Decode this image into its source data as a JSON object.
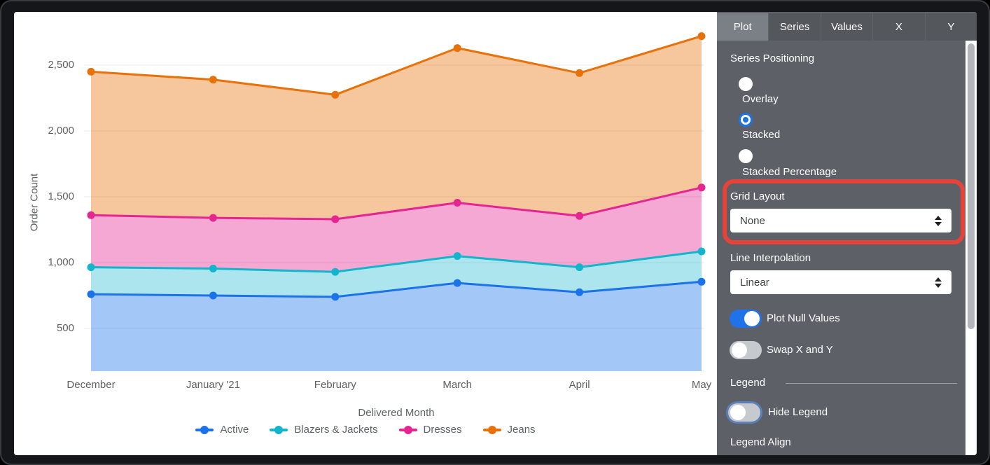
{
  "chart_data": {
    "type": "area",
    "stacked": true,
    "title": "",
    "xlabel": "Delivered Month",
    "ylabel": "Order Count",
    "categories": [
      "December",
      "January '21",
      "February",
      "March",
      "April",
      "May"
    ],
    "series": [
      {
        "name": "Active",
        "color": "#1a73e8",
        "fill": "rgba(26,115,232,0.40)",
        "values": [
          760,
          750,
          740,
          845,
          775,
          855
        ]
      },
      {
        "name": "Blazers & Jackets",
        "color": "#12b5cb",
        "fill": "rgba(18,181,203,0.35)",
        "values": [
          205,
          205,
          190,
          205,
          190,
          230
        ]
      },
      {
        "name": "Dresses",
        "color": "#e52592",
        "fill": "rgba(229,37,146,0.40)",
        "values": [
          395,
          385,
          400,
          405,
          390,
          485
        ]
      },
      {
        "name": "Jeans",
        "color": "#e8710a",
        "fill": "rgba(232,113,10,0.40)",
        "values": [
          1090,
          1050,
          945,
          1175,
          1085,
          1150
        ]
      }
    ],
    "stacked_totals": {
      "Active": [
        760,
        750,
        740,
        845,
        775,
        855
      ],
      "Blazers & Jackets": [
        965,
        955,
        930,
        1050,
        965,
        1085
      ],
      "Dresses": [
        1360,
        1340,
        1330,
        1455,
        1355,
        1570
      ],
      "Jeans": [
        2450,
        2390,
        2275,
        2630,
        2440,
        2720
      ]
    },
    "y_ticks": [
      500,
      1000,
      1500,
      2000,
      2500
    ],
    "y_tick_labels": [
      "500",
      "1,000",
      "1,500",
      "2,000",
      "2,500"
    ],
    "ylim": [
      165,
      2910
    ],
    "grid": "horizontal",
    "legend_position": "bottom"
  },
  "panel": {
    "tabs": [
      {
        "label": "Plot",
        "active": true
      },
      {
        "label": "Series",
        "active": false
      },
      {
        "label": "Values",
        "active": false
      },
      {
        "label": "X",
        "active": false
      },
      {
        "label": "Y",
        "active": false
      }
    ],
    "series_positioning": {
      "label": "Series Positioning",
      "options": [
        {
          "label": "Overlay",
          "selected": false
        },
        {
          "label": "Stacked",
          "selected": true
        },
        {
          "label": "Stacked Percentage",
          "selected": false
        }
      ]
    },
    "grid_layout": {
      "label": "Grid Layout",
      "value": "None",
      "highlighted": true
    },
    "line_interpolation": {
      "label": "Line Interpolation",
      "value": "Linear"
    },
    "plot_null_values": {
      "label": "Plot Null Values",
      "on": true
    },
    "swap_x_y": {
      "label": "Swap X and Y",
      "on": false
    },
    "legend_section": {
      "label": "Legend"
    },
    "hide_legend": {
      "label": "Hide Legend",
      "on": false,
      "focused": true
    },
    "legend_align": {
      "label": "Legend Align"
    },
    "highlight_color": "#e8433a"
  }
}
